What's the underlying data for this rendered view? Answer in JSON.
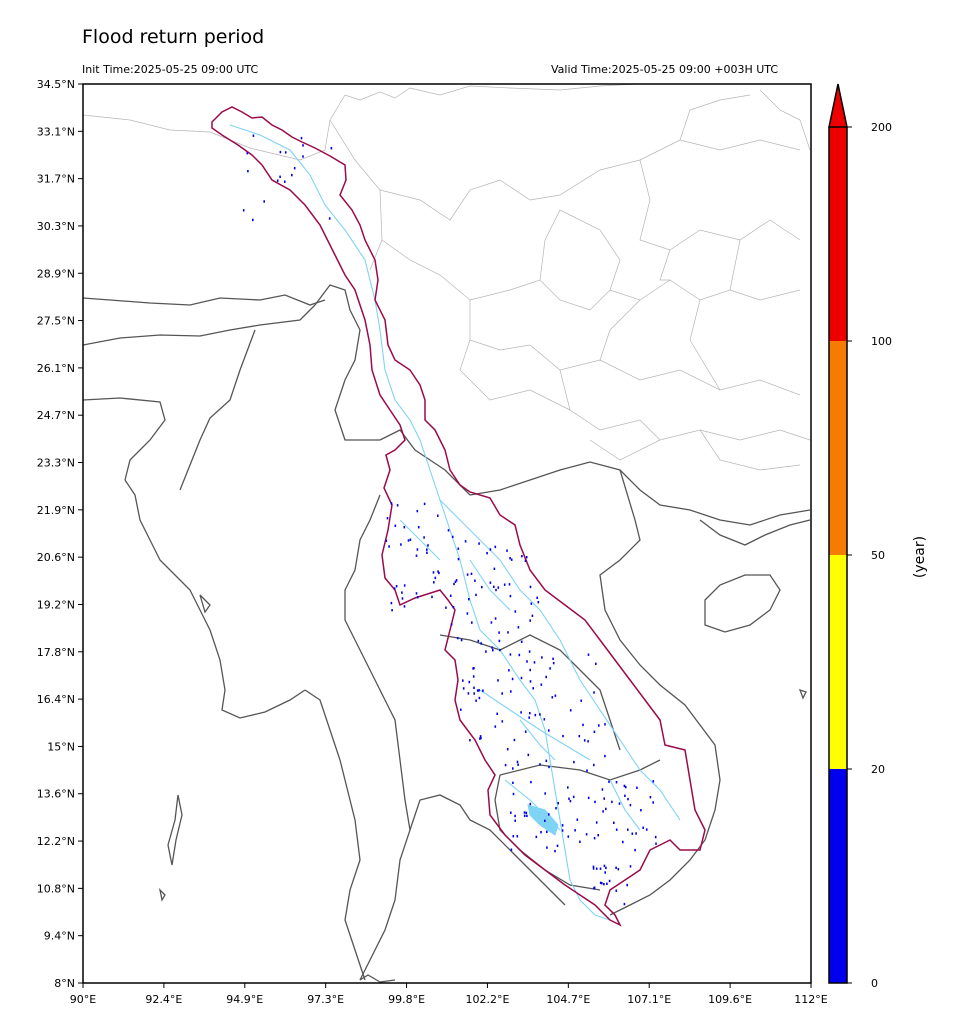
{
  "title": "Flood return period",
  "init_time": "Init Time:2025-05-25 09:00 UTC",
  "valid_time": "Valid Time:2025-05-25 09:00 +003H UTC",
  "map": {
    "lon_range": [
      90,
      112
    ],
    "lat_range": [
      8,
      34.5
    ],
    "lat_ticks": [
      "34.5°N",
      "33.1°N",
      "31.7°N",
      "30.3°N",
      "28.9°N",
      "27.5°N",
      "26.1°N",
      "24.7°N",
      "23.3°N",
      "21.9°N",
      "20.6°N",
      "19.2°N",
      "17.8°N",
      "16.4°N",
      "15°N",
      "13.6°N",
      "12.2°N",
      "10.8°N",
      "9.4°N",
      "8°N"
    ],
    "lon_ticks": [
      "90°E",
      "92.4°E",
      "94.9°E",
      "97.3°E",
      "99.8°E",
      "102.2°E",
      "104.7°E",
      "107.1°E",
      "109.6°E",
      "112°E"
    ],
    "colors": {
      "basin_outline": "#9b0a4a",
      "country_border": "#555555",
      "province_border": "#b5b5b5",
      "river": "#7fd3f5"
    }
  },
  "colorbar": {
    "unit": "(year)",
    "ticks": [
      "0",
      "20",
      "50",
      "100",
      "200"
    ],
    "bins": [
      {
        "from": 0,
        "to": 20,
        "color": "#0000ee"
      },
      {
        "from": 20,
        "to": 50,
        "color": "#ffff00"
      },
      {
        "from": 50,
        "to": 100,
        "color": "#f57c00"
      },
      {
        "from": 100,
        "to": 200,
        "color": "#ee0000"
      }
    ],
    "extend": "max"
  }
}
